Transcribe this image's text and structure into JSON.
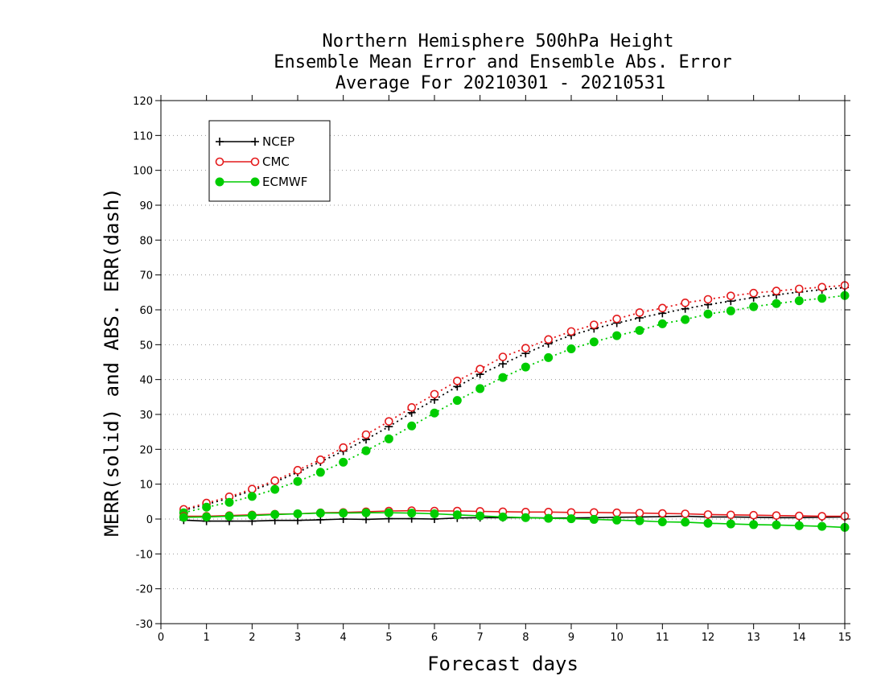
{
  "chart_data": {
    "type": "line",
    "title": [
      "Northern Hemisphere 500hPa Height",
      "Ensemble Mean Error and Ensemble Abs. Error",
      "Average For 20210301 - 20210531"
    ],
    "xlabel": "Forecast days",
    "ylabel": "MERR(solid) and ABS. ERR(dash)",
    "xlim": [
      0,
      15
    ],
    "ylim": [
      -30,
      120
    ],
    "xticks": [
      0,
      1,
      2,
      3,
      4,
      5,
      6,
      7,
      8,
      9,
      10,
      11,
      12,
      13,
      14,
      15
    ],
    "yticks": [
      -30,
      -20,
      -10,
      0,
      10,
      20,
      30,
      40,
      50,
      60,
      70,
      80,
      90,
      100,
      110,
      120
    ],
    "grid": "horizontal dotted",
    "legend_position": "top-left",
    "x": [
      0.5,
      1,
      1.5,
      2,
      2.5,
      3,
      3.5,
      4,
      4.5,
      5,
      5.5,
      6,
      6.5,
      7,
      7.5,
      8,
      8.5,
      9,
      9.5,
      10,
      10.5,
      11,
      11.5,
      12,
      12.5,
      13,
      13.5,
      14,
      14.5,
      15
    ],
    "series": [
      {
        "name": "NCEP",
        "kind": "merr",
        "style": "solid",
        "marker": "plus",
        "color": "#000000",
        "values": [
          -0.3,
          -0.6,
          -0.6,
          -0.6,
          -0.4,
          -0.4,
          -0.2,
          0.0,
          -0.1,
          0.1,
          0.1,
          0.0,
          0.3,
          0.4,
          0.4,
          0.4,
          0.3,
          0.3,
          0.4,
          0.5,
          0.6,
          0.7,
          0.8,
          0.6,
          0.6,
          0.5,
          0.4,
          0.4,
          0.5,
          0.6
        ]
      },
      {
        "name": "CMC",
        "kind": "merr",
        "style": "solid",
        "marker": "circle-open",
        "color": "#e41a1c",
        "values": [
          0.8,
          0.8,
          1.0,
          1.2,
          1.4,
          1.5,
          1.8,
          1.9,
          2.1,
          2.3,
          2.4,
          2.3,
          2.3,
          2.2,
          2.1,
          2.0,
          2.0,
          1.9,
          1.9,
          1.8,
          1.7,
          1.6,
          1.5,
          1.3,
          1.2,
          1.1,
          1.0,
          0.9,
          0.8,
          0.8
        ]
      },
      {
        "name": "ECMWF",
        "kind": "merr",
        "style": "solid",
        "marker": "circle-filled",
        "color": "#00cc00",
        "values": [
          0.5,
          0.6,
          0.8,
          1.0,
          1.3,
          1.5,
          1.7,
          1.7,
          1.8,
          1.8,
          1.7,
          1.5,
          1.2,
          0.9,
          0.6,
          0.4,
          0.2,
          0.1,
          -0.1,
          -0.3,
          -0.5,
          -0.8,
          -0.9,
          -1.2,
          -1.4,
          -1.6,
          -1.7,
          -1.9,
          -2.1,
          -2.4
        ]
      },
      {
        "name": "NCEP",
        "kind": "abserr",
        "style": "dotted",
        "marker": "plus",
        "color": "#000000",
        "values": [
          2.5,
          4.2,
          6.0,
          8.2,
          10.6,
          13.4,
          16.4,
          19.5,
          22.8,
          26.5,
          30.5,
          34.2,
          38.0,
          41.5,
          44.5,
          47.5,
          50.3,
          52.7,
          54.6,
          56.2,
          57.7,
          59.0,
          60.3,
          61.5,
          62.5,
          63.5,
          64.3,
          65.1,
          65.8,
          66.4
        ]
      },
      {
        "name": "CMC",
        "kind": "abserr",
        "style": "dotted",
        "marker": "circle-open",
        "color": "#e41a1c",
        "values": [
          2.8,
          4.6,
          6.4,
          8.6,
          11.0,
          14.0,
          17.0,
          20.5,
          24.2,
          28.0,
          32.0,
          35.8,
          39.6,
          43.0,
          46.5,
          49.0,
          51.5,
          53.8,
          55.7,
          57.4,
          59.2,
          60.5,
          62.0,
          63.0,
          64.0,
          64.8,
          65.4,
          66.0,
          66.5,
          67.0
        ]
      },
      {
        "name": "ECMWF",
        "kind": "abserr",
        "style": "dotted",
        "marker": "circle-filled",
        "color": "#00cc00",
        "values": [
          1.8,
          3.4,
          4.8,
          6.5,
          8.5,
          10.8,
          13.4,
          16.3,
          19.6,
          23.0,
          26.7,
          30.4,
          34.0,
          37.4,
          40.6,
          43.6,
          46.3,
          48.8,
          50.8,
          52.6,
          54.1,
          56.0,
          57.2,
          58.8,
          59.7,
          60.9,
          61.8,
          62.6,
          63.3,
          64.1
        ]
      }
    ],
    "legend": [
      {
        "name": "NCEP",
        "marker": "plus",
        "color": "#000000"
      },
      {
        "name": "CMC",
        "marker": "circle-open",
        "color": "#e41a1c"
      },
      {
        "name": "ECMWF",
        "marker": "circle-filled",
        "color": "#00cc00"
      }
    ]
  }
}
